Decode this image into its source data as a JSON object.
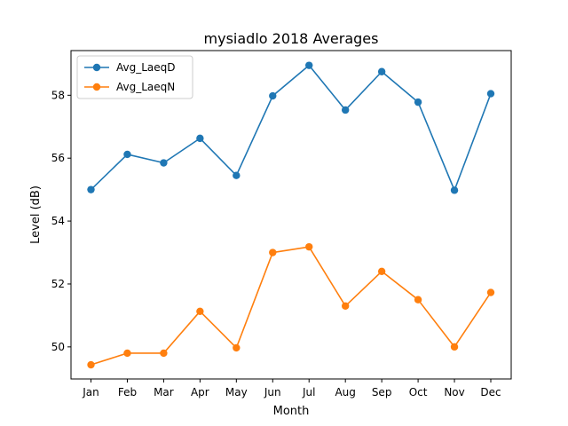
{
  "chart_data": {
    "type": "line",
    "title": "mysiadlo 2018 Averages",
    "xlabel": "Month",
    "ylabel": "Level (dB)",
    "categories": [
      "Jan",
      "Feb",
      "Mar",
      "Apr",
      "May",
      "Jun",
      "Jul",
      "Aug",
      "Sep",
      "Oct",
      "Nov",
      "Dec"
    ],
    "ylim": [
      48.98,
      59.42
    ],
    "yticks": [
      50,
      52,
      54,
      56,
      58
    ],
    "grid": false,
    "legend_position": "top-left",
    "series": [
      {
        "name": "Avg_LaeqD",
        "color": "#1f77b4",
        "marker": "circle",
        "values": [
          55.0,
          56.12,
          55.85,
          56.63,
          55.45,
          57.98,
          58.95,
          57.53,
          58.75,
          57.78,
          54.98,
          58.05
        ]
      },
      {
        "name": "Avg_LaeqN",
        "color": "#ff7f0e",
        "marker": "circle",
        "values": [
          49.43,
          49.8,
          49.8,
          51.13,
          49.97,
          53.0,
          53.18,
          51.3,
          52.4,
          51.5,
          50.0,
          51.73
        ]
      }
    ]
  }
}
